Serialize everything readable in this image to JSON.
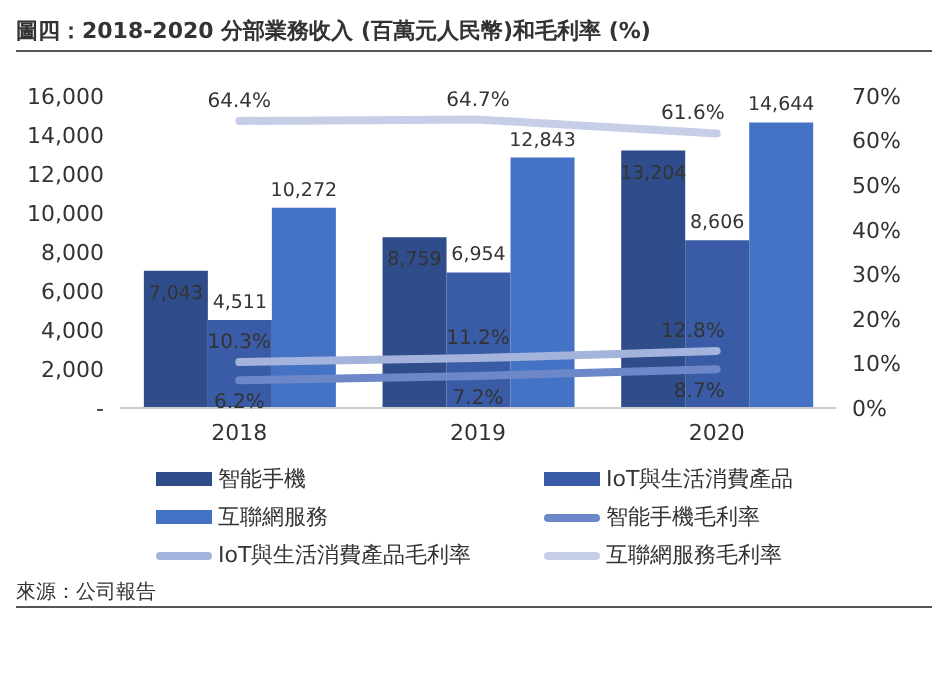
{
  "chart_data": {
    "type": "bar",
    "title": "圖四：2018-2020 分部業務收入 (百萬元人民幣)和毛利率 (%)",
    "categories": [
      "2018",
      "2019",
      "2020"
    ],
    "series": [
      {
        "name": "智能手機",
        "color": "#2f4d8a",
        "values": [
          7043,
          8759,
          13204
        ],
        "value_labels": [
          "7,043",
          "8,759",
          "13,204"
        ]
      },
      {
        "name": "IoT與生活消費產品",
        "color": "#3a5ba6",
        "values": [
          4511,
          6954,
          8606
        ],
        "value_labels": [
          "4,511",
          "6,954",
          "8,606"
        ]
      },
      {
        "name": "互聯網服務",
        "color": "#4472c4",
        "values": [
          10272,
          12843,
          14644
        ],
        "value_labels": [
          "10,272",
          "12,843",
          "14,644"
        ]
      },
      {
        "name": "智能手機毛利率",
        "type": "line",
        "axis": "y2",
        "color": "#6d88c9",
        "values": [
          6.2,
          7.2,
          8.7
        ],
        "value_labels": [
          "6.2%",
          "7.2%",
          "8.7%"
        ]
      },
      {
        "name": "IoT與生活消費產品毛利率",
        "type": "line",
        "axis": "y2",
        "color": "#a3b3db",
        "values": [
          10.3,
          11.2,
          12.8
        ],
        "value_labels": [
          "10.3%",
          "11.2%",
          "12.8%"
        ]
      },
      {
        "name": "互聯網服務毛利率",
        "type": "line",
        "axis": "y2",
        "color": "#c6cfe7",
        "values": [
          64.4,
          64.7,
          61.6
        ],
        "value_labels": [
          "64.4%",
          "64.7%",
          "61.6%"
        ]
      }
    ],
    "ylim": [
      0,
      16000
    ],
    "yticks": [
      {
        "value": 0,
        "label": "-"
      },
      {
        "value": 2000,
        "label": "2,000"
      },
      {
        "value": 4000,
        "label": "4,000"
      },
      {
        "value": 6000,
        "label": "6,000"
      },
      {
        "value": 8000,
        "label": "8,000"
      },
      {
        "value": 10000,
        "label": "10,000"
      },
      {
        "value": 12000,
        "label": "12,000"
      },
      {
        "value": 14000,
        "label": "14,000"
      },
      {
        "value": 16000,
        "label": "16,000"
      }
    ],
    "y2lim": [
      0,
      70
    ],
    "y2ticks": [
      {
        "value": 0,
        "label": "0%"
      },
      {
        "value": 10,
        "label": "10%"
      },
      {
        "value": 20,
        "label": "20%"
      },
      {
        "value": 30,
        "label": "30%"
      },
      {
        "value": 40,
        "label": "40%"
      },
      {
        "value": 50,
        "label": "50%"
      },
      {
        "value": 60,
        "label": "60%"
      },
      {
        "value": 70,
        "label": "70%"
      }
    ],
    "grid": false,
    "legend": "bottom",
    "marker": "none",
    "line_style": "solid",
    "annotations": [
      "來源：公司報告"
    ]
  }
}
